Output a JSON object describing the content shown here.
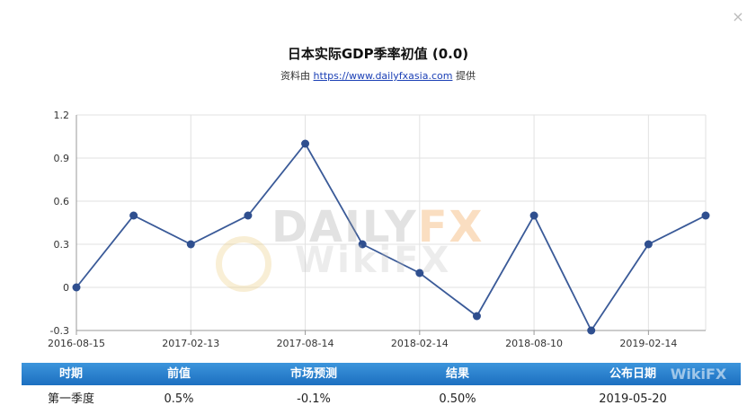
{
  "dialog": {
    "close_label": "×"
  },
  "header": {
    "title": "日本实际GDP季率初值 (0.0)",
    "source_prefix": "资料由",
    "source_link": "https://www.dailyfxasia.com",
    "source_suffix": "提供"
  },
  "chart_data": {
    "type": "line",
    "title": "",
    "xlabel": "",
    "ylabel": "",
    "x": [
      "2016-08-15",
      "2016-11-14",
      "2017-02-13",
      "2017-05-18",
      "2017-08-14",
      "2017-11-15",
      "2018-02-14",
      "2018-05-16",
      "2018-08-10",
      "2018-11-14",
      "2019-02-14",
      "2019-05-20"
    ],
    "x_tick_labels": [
      "2016-08-15",
      "2017-02-13",
      "2017-08-14",
      "2018-02-14",
      "2018-08-10",
      "2019-02-14"
    ],
    "series": [
      {
        "values": [
          0.0,
          0.5,
          0.3,
          0.5,
          1.0,
          0.3,
          0.1,
          -0.2,
          0.5,
          -0.3,
          0.3,
          0.5
        ]
      }
    ],
    "ylim": [
      -0.3,
      1.2
    ],
    "y_ticks": [
      "1.2",
      "0.9",
      "0.6",
      "0.3",
      "0",
      "-0.3"
    ],
    "grid": true,
    "line_color": "#3a5a98",
    "marker_color": "#2f4f8f"
  },
  "watermark": {
    "daily": "DAILY",
    "fx": "FX",
    "wikifx": "WikiFX"
  },
  "table": {
    "headers": [
      "时期",
      "前值",
      "市场预测",
      "结果",
      "公布日期"
    ],
    "row": [
      "第一季度",
      "0.5%",
      "-0.1%",
      "0.50%",
      "2019-05-20"
    ]
  }
}
